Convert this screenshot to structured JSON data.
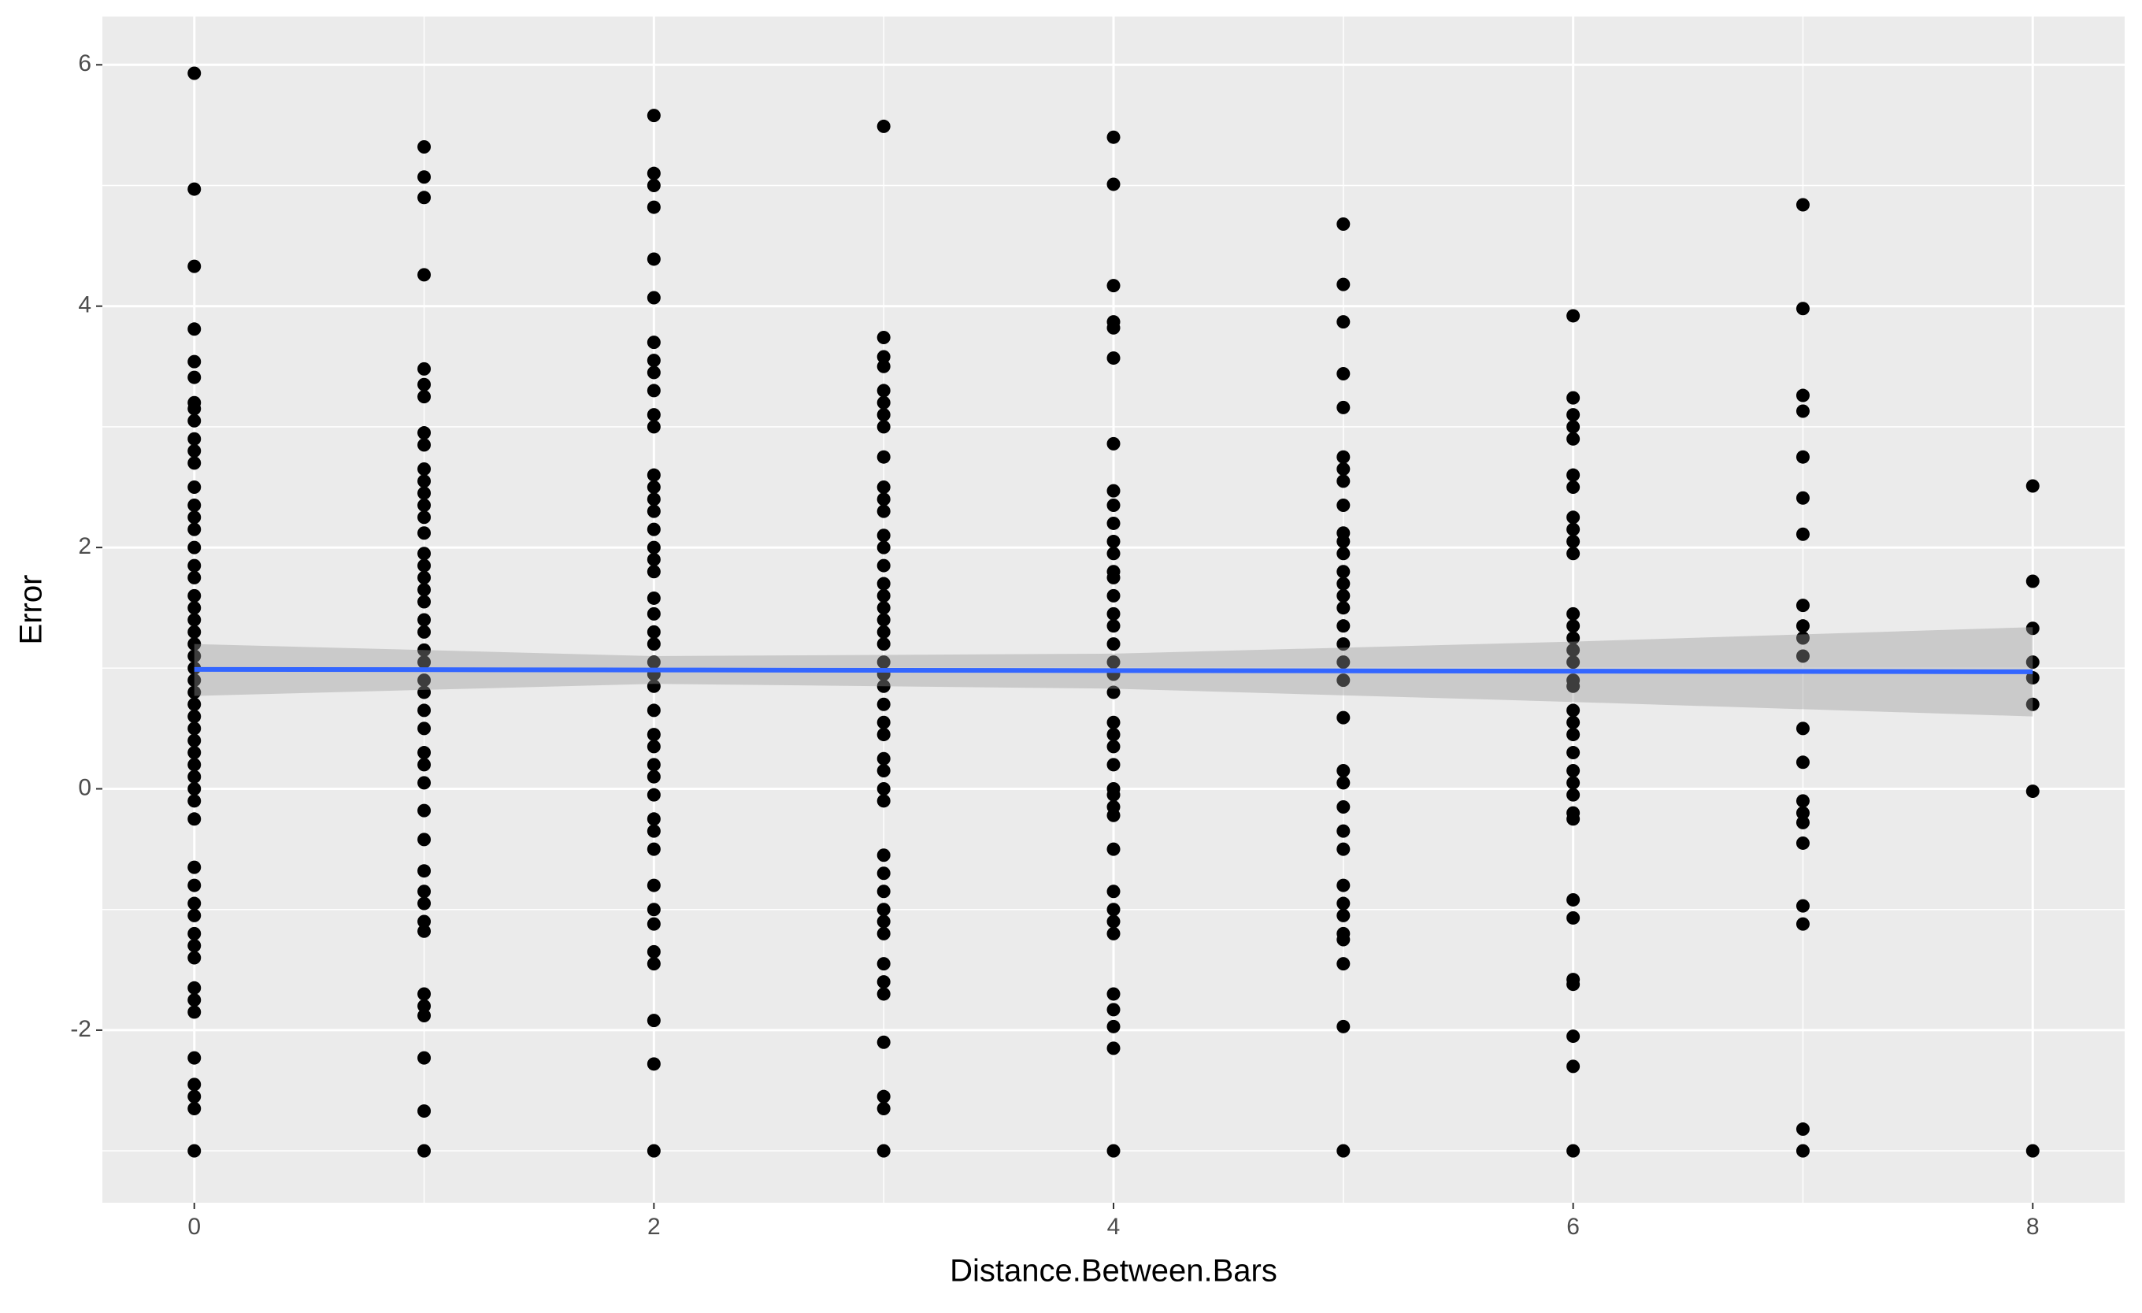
{
  "chart_data": {
    "type": "scatter",
    "x_label": "Distance.Between.Bars",
    "y_label": "Error",
    "color": "#000000",
    "panel_color": "#EBEBEB",
    "grid": true,
    "xlim": [
      -0.4,
      8.4
    ],
    "ylim": [
      -3.43,
      6.4
    ],
    "xticks": [
      0,
      2,
      4,
      6,
      8
    ],
    "yticks": [
      -2,
      0,
      2,
      4,
      6
    ],
    "x": [
      0,
      0,
      0,
      0,
      0,
      0,
      0,
      0,
      0,
      0,
      0,
      0,
      0,
      0,
      0,
      0,
      0,
      0,
      0,
      0,
      0,
      0,
      0,
      0,
      0,
      0,
      0,
      0,
      0,
      0,
      0,
      0,
      0,
      0,
      0,
      0,
      0,
      0,
      0,
      0,
      0,
      0,
      0,
      0,
      0,
      0,
      0,
      0,
      0,
      0,
      0,
      0,
      0,
      1,
      1,
      1,
      1,
      1,
      1,
      1,
      1,
      1,
      1,
      1,
      1,
      1,
      1,
      1,
      1,
      1,
      1,
      1,
      1,
      1,
      1,
      1,
      1,
      1,
      1,
      1,
      1,
      1,
      1,
      1,
      1,
      1,
      1,
      1,
      1,
      1,
      1,
      1,
      1,
      1,
      1,
      1,
      1,
      2,
      2,
      2,
      2,
      2,
      2,
      2,
      2,
      2,
      2,
      2,
      2,
      2,
      2,
      2,
      2,
      2,
      2,
      2,
      2,
      2,
      2,
      2,
      2,
      2,
      2,
      2,
      2,
      2,
      2,
      2,
      2,
      2,
      2,
      2,
      2,
      2,
      2,
      2,
      2,
      2,
      2,
      2,
      2,
      3,
      3,
      3,
      3,
      3,
      3,
      3,
      3,
      3,
      3,
      3,
      3,
      3,
      3,
      3,
      3,
      3,
      3,
      3,
      3,
      3,
      3,
      3,
      3,
      3,
      3,
      3,
      3,
      3,
      3,
      3,
      3,
      3,
      3,
      3,
      3,
      3,
      3,
      3,
      3,
      3,
      3,
      3,
      3,
      4,
      4,
      4,
      4,
      4,
      4,
      4,
      4,
      4,
      4,
      4,
      4,
      4,
      4,
      4,
      4,
      4,
      4,
      4,
      4,
      4,
      4,
      4,
      4,
      4,
      4,
      4,
      4,
      4,
      4,
      4,
      4,
      4,
      4,
      4,
      4,
      4,
      4,
      4,
      5,
      5,
      5,
      5,
      5,
      5,
      5,
      5,
      5,
      5,
      5,
      5,
      5,
      5,
      5,
      5,
      5,
      5,
      5,
      5,
      5,
      5,
      5,
      5,
      5,
      5,
      5,
      5,
      5,
      5,
      5,
      5,
      5,
      5,
      6,
      6,
      6,
      6,
      6,
      6,
      6,
      6,
      6,
      6,
      6,
      6,
      6,
      6,
      6,
      6,
      6,
      6,
      6,
      6,
      6,
      6,
      6,
      6,
      6,
      6,
      6,
      6,
      6,
      6,
      6,
      6,
      6,
      6,
      7,
      7,
      7,
      7,
      7,
      7,
      7,
      7,
      7,
      7,
      7,
      7,
      7,
      7,
      7,
      7,
      7,
      7,
      7,
      7,
      7,
      8,
      8,
      8,
      8,
      8,
      8,
      8,
      8
    ],
    "y": [
      5.93,
      4.97,
      4.33,
      3.81,
      3.54,
      3.41,
      3.2,
      3.15,
      3.05,
      2.9,
      2.8,
      2.7,
      2.5,
      2.35,
      2.25,
      2.15,
      2.0,
      1.85,
      1.75,
      1.6,
      1.5,
      1.4,
      1.3,
      1.2,
      1.1,
      1.0,
      0.9,
      0.8,
      0.7,
      0.6,
      0.5,
      0.4,
      0.3,
      0.2,
      0.1,
      0.0,
      -0.1,
      -0.25,
      -0.65,
      -0.8,
      -0.95,
      -1.05,
      -1.2,
      -1.3,
      -1.4,
      -1.65,
      -1.75,
      -1.85,
      -2.23,
      -2.45,
      -2.55,
      -2.65,
      -3.0,
      5.32,
      5.07,
      4.9,
      4.26,
      3.48,
      3.35,
      3.25,
      2.95,
      2.85,
      2.65,
      2.55,
      2.45,
      2.35,
      2.25,
      2.12,
      1.95,
      1.85,
      1.75,
      1.65,
      1.55,
      1.4,
      1.3,
      1.15,
      1.05,
      0.9,
      0.8,
      0.65,
      0.5,
      0.3,
      0.2,
      0.05,
      -0.18,
      -0.42,
      -0.68,
      -0.85,
      -0.95,
      -1.1,
      -1.18,
      -1.7,
      -1.8,
      -1.88,
      -2.23,
      -2.67,
      -3.0,
      5.58,
      5.1,
      5.0,
      4.82,
      4.39,
      4.07,
      3.7,
      3.55,
      3.45,
      3.3,
      3.1,
      3.0,
      2.6,
      2.5,
      2.4,
      2.3,
      2.15,
      2.0,
      1.9,
      1.8,
      1.58,
      1.45,
      1.3,
      1.2,
      1.05,
      0.95,
      0.85,
      0.65,
      0.45,
      0.35,
      0.2,
      0.1,
      -0.05,
      -0.25,
      -0.35,
      -0.5,
      -0.8,
      -1.0,
      -1.12,
      -1.35,
      -1.45,
      -1.92,
      -2.28,
      -3.0,
      5.49,
      3.74,
      3.58,
      3.5,
      3.3,
      3.2,
      3.1,
      3.0,
      2.75,
      2.5,
      2.4,
      2.3,
      2.1,
      2.0,
      1.85,
      1.7,
      1.6,
      1.5,
      1.4,
      1.3,
      1.2,
      1.05,
      0.95,
      0.85,
      0.7,
      0.55,
      0.45,
      0.25,
      0.15,
      0.0,
      -0.1,
      -0.55,
      -0.7,
      -0.85,
      -1.0,
      -1.1,
      -1.2,
      -1.45,
      -1.6,
      -1.7,
      -2.1,
      -2.55,
      -2.65,
      -3.0,
      5.4,
      5.01,
      4.17,
      3.87,
      3.82,
      3.57,
      2.86,
      2.47,
      2.35,
      2.2,
      2.05,
      1.95,
      1.8,
      1.75,
      1.6,
      1.45,
      1.35,
      1.2,
      1.05,
      0.95,
      0.8,
      0.55,
      0.45,
      0.35,
      0.2,
      0.0,
      -0.05,
      -0.15,
      -0.22,
      -0.5,
      -0.85,
      -1.0,
      -1.1,
      -1.2,
      -1.7,
      -1.83,
      -1.97,
      -2.15,
      -3.0,
      4.68,
      4.18,
      3.87,
      3.44,
      3.16,
      2.75,
      2.65,
      2.55,
      2.35,
      2.12,
      2.05,
      1.95,
      1.8,
      1.7,
      1.6,
      1.5,
      1.35,
      1.2,
      1.05,
      0.9,
      0.59,
      0.15,
      0.05,
      -0.15,
      -0.35,
      -0.5,
      -0.8,
      -0.95,
      -1.05,
      -1.2,
      -1.25,
      -1.45,
      -1.97,
      -3.0,
      3.92,
      3.24,
      3.1,
      3.0,
      2.9,
      2.6,
      2.5,
      2.25,
      2.15,
      2.05,
      1.95,
      1.45,
      1.35,
      1.25,
      1.15,
      1.05,
      0.9,
      0.85,
      0.65,
      0.55,
      0.45,
      0.3,
      0.15,
      0.05,
      -0.05,
      -0.2,
      -0.25,
      -0.92,
      -1.07,
      -1.58,
      -1.62,
      -2.05,
      -2.3,
      -3.0,
      4.84,
      3.98,
      3.26,
      3.13,
      2.75,
      2.41,
      2.11,
      1.52,
      1.35,
      1.25,
      1.1,
      0.5,
      0.22,
      -0.1,
      -0.2,
      -0.28,
      -0.45,
      -0.97,
      -1.12,
      -2.82,
      -3.0,
      2.51,
      1.72,
      1.33,
      1.05,
      0.92,
      0.7,
      -0.02,
      -3.0
    ],
    "fit": {
      "color": "#3366FF",
      "band_color": "#999999",
      "x": [
        0,
        2,
        4,
        6,
        8
      ],
      "y": [
        0.99,
        0.985,
        0.98,
        0.975,
        0.97
      ],
      "lower": [
        0.77,
        0.87,
        0.83,
        0.72,
        0.6
      ],
      "upper": [
        1.2,
        1.1,
        1.12,
        1.22,
        1.34
      ]
    }
  }
}
